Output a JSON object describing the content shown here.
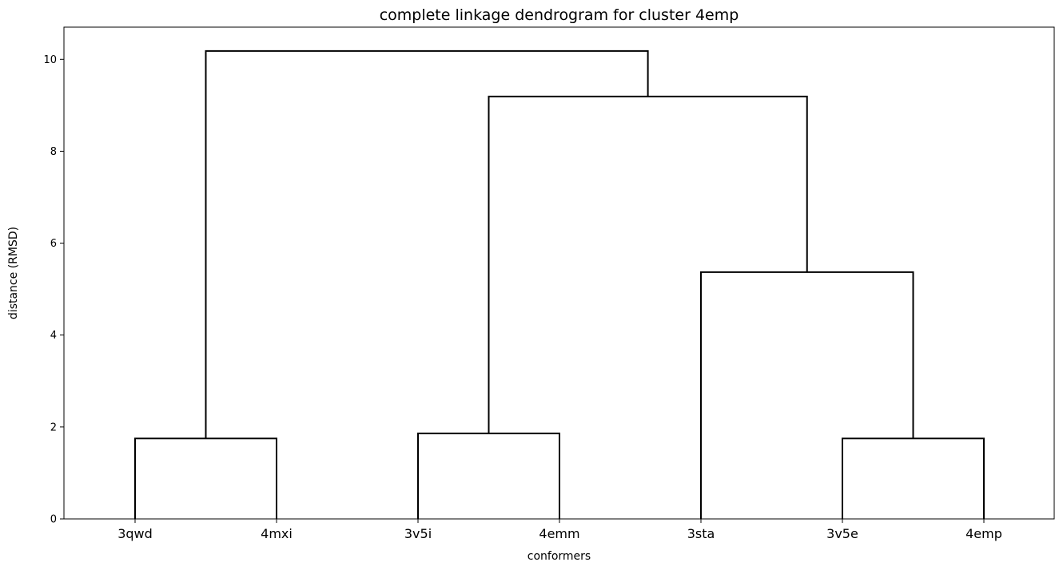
{
  "chart_data": {
    "type": "dendrogram",
    "title": "complete linkage dendrogram for cluster 4emp",
    "xlabel": "conformers",
    "ylabel": "distance (RMSD)",
    "leaves": [
      "3qwd",
      "4mxi",
      "3v5i",
      "4emm",
      "3sta",
      "3v5e",
      "4emp"
    ],
    "ylim": [
      0,
      10.7
    ],
    "yticks": [
      0,
      2,
      4,
      6,
      8,
      10
    ],
    "merges": [
      {
        "left": "3qwd",
        "right": "4mxi",
        "distance": 1.75
      },
      {
        "left": "3v5i",
        "right": "4emm",
        "distance": 1.86
      },
      {
        "left": "3v5e",
        "right": "4emp",
        "distance": 1.75
      },
      {
        "left": "3sta",
        "right": "(3v5e, 4emp)",
        "distance": 5.37
      },
      {
        "left": "(3v5i, 4emm)",
        "right": "(3sta, (3v5e, 4emp))",
        "distance": 9.19
      },
      {
        "left": "(3qwd, 4mxi)",
        "right": "((3v5i, 4emm), (3sta, (3v5e, 4emp)))",
        "distance": 10.18
      }
    ],
    "links": [
      {
        "x": [
          0,
          1
        ],
        "height": 1.75,
        "left_height": 0,
        "right_height": 0
      },
      {
        "x": [
          2,
          3
        ],
        "height": 1.86,
        "left_height": 0,
        "right_height": 0
      },
      {
        "x": [
          5,
          6
        ],
        "height": 1.75,
        "left_height": 0,
        "right_height": 0
      },
      {
        "x": [
          4,
          5.5
        ],
        "height": 5.37,
        "left_height": 0,
        "right_height": 1.75
      },
      {
        "x": [
          2.5,
          4.75
        ],
        "height": 9.19,
        "left_height": 1.86,
        "right_height": 5.37
      },
      {
        "x": [
          0.5,
          3.625
        ],
        "height": 10.18,
        "left_height": 1.75,
        "right_height": 9.19
      }
    ],
    "grid": false,
    "line_color": "#000000"
  }
}
